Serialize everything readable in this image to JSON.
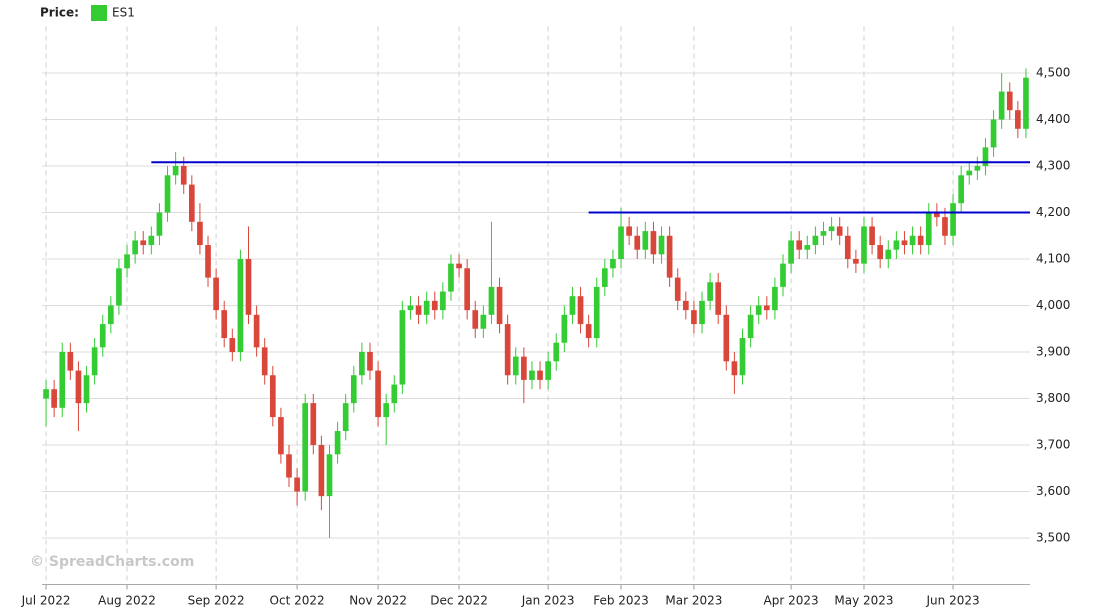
{
  "chart_data": {
    "type": "candlestick",
    "legend_label": "Price:",
    "watermark": "© SpreadCharts.com",
    "categories": [
      "Jul 2022",
      null,
      null,
      null,
      null,
      null,
      null,
      null,
      null,
      null,
      "Aug 2022",
      null,
      null,
      null,
      null,
      null,
      null,
      null,
      null,
      null,
      null,
      "Sep 2022",
      null,
      null,
      null,
      null,
      null,
      null,
      null,
      null,
      null,
      "Oct 2022",
      null,
      null,
      null,
      null,
      null,
      null,
      null,
      null,
      null,
      "Nov 2022",
      null,
      null,
      null,
      null,
      null,
      null,
      null,
      null,
      null,
      "Dec 2022",
      null,
      null,
      null,
      null,
      null,
      null,
      null,
      null,
      null,
      null,
      "Jan 2023",
      null,
      null,
      null,
      null,
      null,
      null,
      null,
      null,
      "Feb 2023",
      null,
      null,
      null,
      null,
      null,
      null,
      null,
      null,
      "Mar 2023",
      null,
      null,
      null,
      null,
      null,
      null,
      null,
      null,
      null,
      null,
      null,
      "Apr 2023",
      null,
      null,
      null,
      null,
      null,
      null,
      null,
      null,
      "May 2023",
      null,
      null,
      null,
      null,
      null,
      null,
      null,
      null,
      null,
      null,
      "Jun 2023",
      null,
      null,
      null,
      null,
      null,
      null,
      null,
      null,
      null
    ],
    "series": [
      {
        "name": "ES1",
        "color": "#33cc33",
        "down_color": "#d9473a",
        "open": [
          3800,
          3820,
          3780,
          3900,
          3860,
          3790,
          3850,
          3910,
          3960,
          4000,
          4080,
          4110,
          4140,
          4130,
          4150,
          4200,
          4280,
          4300,
          4260,
          4180,
          4130,
          4060,
          3990,
          3930,
          3900,
          4100,
          3980,
          3910,
          3850,
          3760,
          3680,
          3630,
          3600,
          3790,
          3700,
          3590,
          3680,
          3730,
          3790,
          3850,
          3900,
          3860,
          3760,
          3790,
          3830,
          3990,
          4000,
          3980,
          4010,
          3990,
          4030,
          4090,
          4080,
          3990,
          3950,
          3980,
          4040,
          3960,
          3850,
          3890,
          3840,
          3860,
          3840,
          3880,
          3920,
          3980,
          4020,
          3960,
          3930,
          4040,
          4080,
          4100,
          4170,
          4150,
          4120,
          4160,
          4110,
          4150,
          4060,
          4010,
          3990,
          3960,
          4010,
          4050,
          3980,
          3880,
          3850,
          3930,
          3980,
          4000,
          3990,
          4040,
          4090,
          4140,
          4120,
          4130,
          4150,
          4160,
          4170,
          4150,
          4100,
          4090,
          4170,
          4130,
          4100,
          4120,
          4140,
          4130,
          4150,
          4130,
          4200,
          4190,
          4150,
          4220,
          4280,
          4290,
          4300,
          4340,
          4400,
          4460,
          4420,
          4380
        ],
        "high": [
          3840,
          3840,
          3920,
          3920,
          3880,
          3870,
          3930,
          3980,
          4020,
          4100,
          4130,
          4160,
          4160,
          4170,
          4220,
          4300,
          4330,
          4320,
          4280,
          4220,
          4150,
          4080,
          4010,
          3950,
          4120,
          4170,
          4000,
          3930,
          3870,
          3780,
          3700,
          3650,
          3810,
          3810,
          3720,
          3700,
          3750,
          3810,
          3870,
          3920,
          3920,
          3880,
          3810,
          3850,
          4010,
          4020,
          4020,
          4030,
          4030,
          4050,
          4110,
          4110,
          4100,
          4010,
          4000,
          4180,
          4060,
          3980,
          3910,
          3910,
          3880,
          3880,
          3900,
          3940,
          4000,
          4040,
          4040,
          3980,
          4060,
          4100,
          4120,
          4210,
          4190,
          4170,
          4180,
          4180,
          4170,
          4170,
          4080,
          4030,
          4010,
          4030,
          4070,
          4070,
          4000,
          3900,
          3950,
          4000,
          4020,
          4020,
          4060,
          4110,
          4160,
          4160,
          4150,
          4170,
          4180,
          4190,
          4190,
          4170,
          4120,
          4190,
          4190,
          4150,
          4140,
          4160,
          4160,
          4170,
          4170,
          4220,
          4220,
          4210,
          4240,
          4300,
          4310,
          4320,
          4360,
          4420,
          4500,
          4480,
          4440,
          4510
        ],
        "low": [
          3740,
          3760,
          3760,
          3840,
          3730,
          3770,
          3830,
          3890,
          3940,
          3980,
          4060,
          4090,
          4110,
          4110,
          4130,
          4180,
          4260,
          4240,
          4160,
          4110,
          4040,
          3970,
          3910,
          3880,
          3880,
          3960,
          3890,
          3830,
          3740,
          3660,
          3610,
          3570,
          3580,
          3680,
          3560,
          3500,
          3660,
          3710,
          3770,
          3830,
          3840,
          3740,
          3700,
          3770,
          3810,
          3970,
          3960,
          3960,
          3970,
          3970,
          4010,
          4060,
          3970,
          3930,
          3930,
          3960,
          3940,
          3830,
          3830,
          3790,
          3820,
          3820,
          3820,
          3860,
          3900,
          3960,
          3940,
          3910,
          3910,
          4020,
          4060,
          4080,
          4130,
          4100,
          4100,
          4090,
          4090,
          4040,
          3990,
          3970,
          3940,
          3940,
          3990,
          3960,
          3860,
          3810,
          3830,
          3910,
          3960,
          3970,
          3970,
          4020,
          4070,
          4100,
          4100,
          4110,
          4130,
          4140,
          4130,
          4080,
          4070,
          4070,
          4110,
          4080,
          4080,
          4100,
          4110,
          4110,
          4110,
          4110,
          4170,
          4130,
          4130,
          4200,
          4260,
          4270,
          4280,
          4320,
          4380,
          4400,
          4360,
          4360
        ],
        "close": [
          3820,
          3780,
          3900,
          3860,
          3790,
          3850,
          3910,
          3960,
          4000,
          4080,
          4110,
          4140,
          4130,
          4150,
          4200,
          4280,
          4300,
          4260,
          4180,
          4130,
          4060,
          3990,
          3930,
          3900,
          4100,
          3980,
          3910,
          3850,
          3760,
          3680,
          3630,
          3600,
          3790,
          3700,
          3590,
          3680,
          3730,
          3790,
          3850,
          3900,
          3860,
          3760,
          3790,
          3830,
          3990,
          4000,
          3980,
          4010,
          3990,
          4030,
          4090,
          4080,
          3990,
          3950,
          3980,
          4040,
          3960,
          3850,
          3890,
          3840,
          3860,
          3840,
          3880,
          3920,
          3980,
          4020,
          3960,
          3930,
          4040,
          4080,
          4100,
          4170,
          4150,
          4120,
          4160,
          4110,
          4150,
          4060,
          4010,
          3990,
          3960,
          4010,
          4050,
          3980,
          3880,
          3850,
          3930,
          3980,
          4000,
          3990,
          4040,
          4090,
          4140,
          4120,
          4130,
          4150,
          4160,
          4170,
          4150,
          4100,
          4090,
          4170,
          4130,
          4100,
          4120,
          4140,
          4130,
          4150,
          4130,
          4200,
          4190,
          4150,
          4220,
          4280,
          4290,
          4300,
          4340,
          4400,
          4460,
          4420,
          4380,
          4490
        ]
      }
    ],
    "hlines": [
      {
        "y": 4308,
        "from": 13,
        "color": "#0000cc"
      },
      {
        "y": 4200,
        "from": 67,
        "color": "#0000cc"
      }
    ],
    "ylim": [
      3400,
      4600
    ],
    "yticks": [
      {
        "value": 3500,
        "label": "3,500"
      },
      {
        "value": 3600,
        "label": "3,600"
      },
      {
        "value": 3700,
        "label": "3,700"
      },
      {
        "value": 3800,
        "label": "3,800"
      },
      {
        "value": 3900,
        "label": "3,900"
      },
      {
        "value": 4000,
        "label": "4,000"
      },
      {
        "value": 4100,
        "label": "4,100"
      },
      {
        "value": 4200,
        "label": "4,200"
      },
      {
        "value": 4300,
        "label": "4,300"
      },
      {
        "value": 4400,
        "label": "4,400"
      },
      {
        "value": 4500,
        "label": "4,500"
      }
    ],
    "grid": true
  }
}
